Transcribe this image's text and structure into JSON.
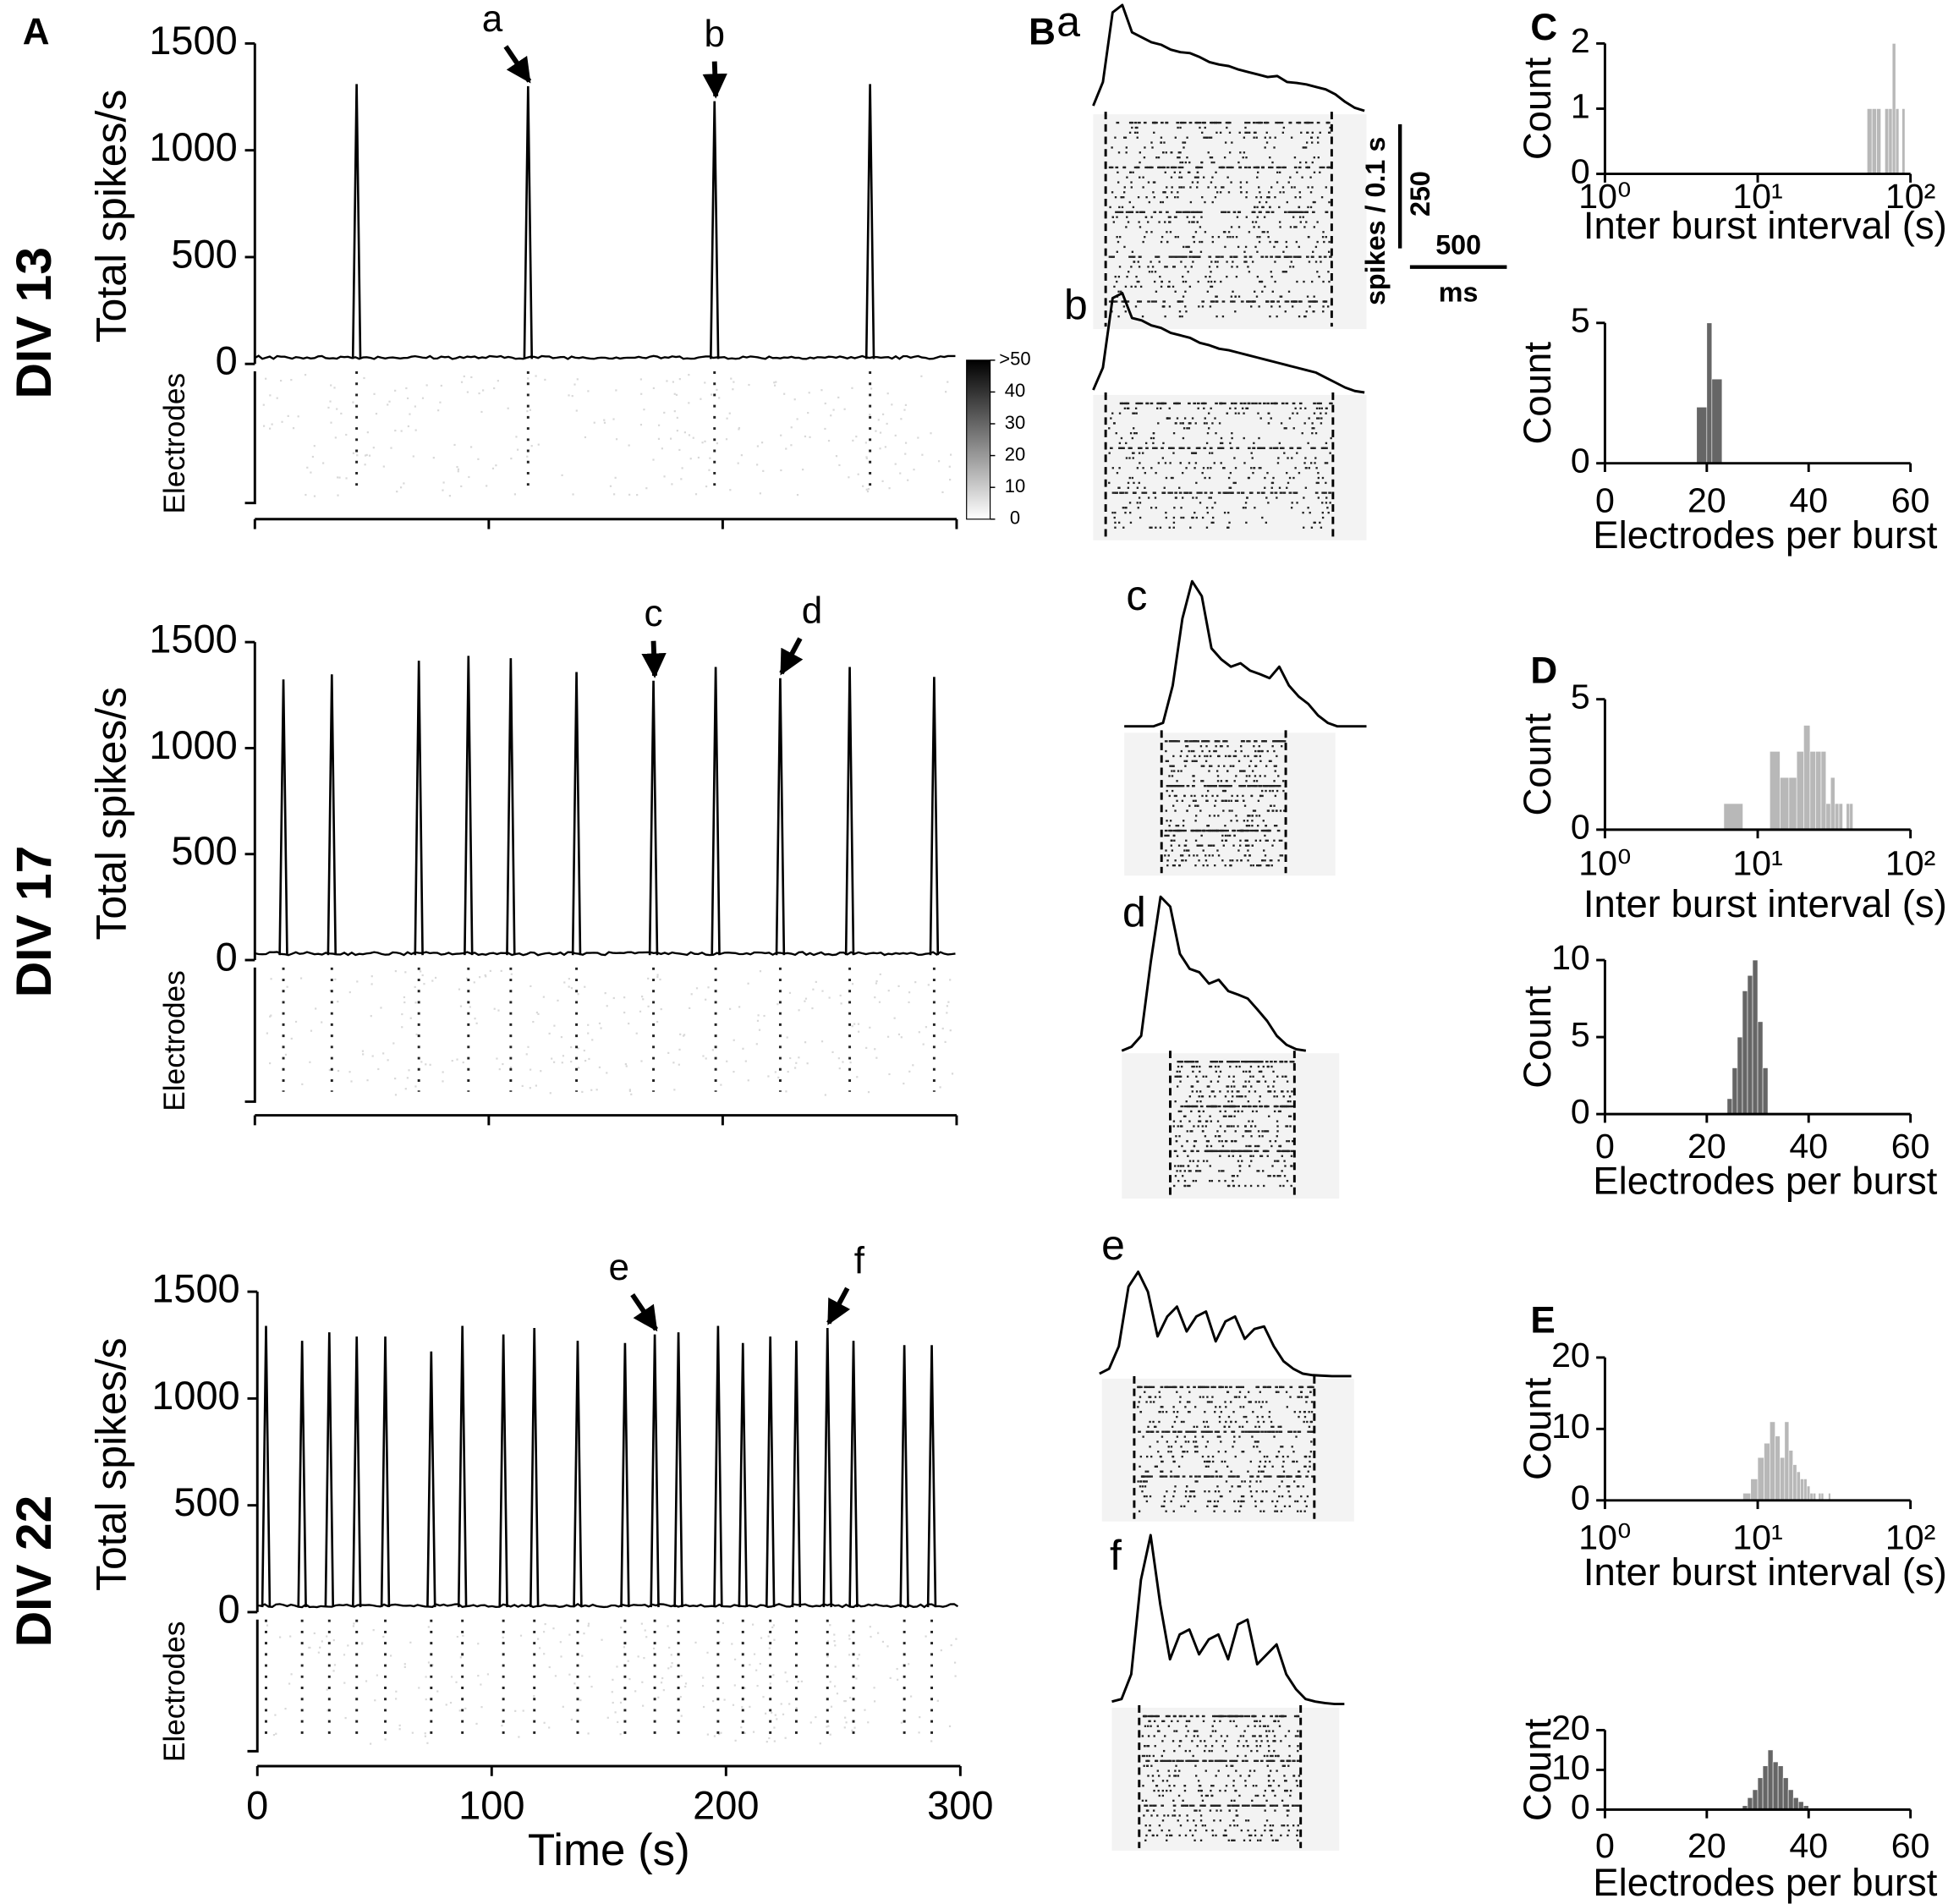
{
  "chart_data": [
    {
      "type": "spikes",
      "panel": "A",
      "row_label": "DIV 13",
      "ylabel": "Total spikes/s",
      "raster_label": "Electrodes",
      "xlim": [
        0,
        300
      ],
      "xticks": [
        0,
        100,
        200,
        300
      ],
      "ylim": [
        0,
        1500
      ],
      "yticks": [
        0,
        500,
        1000,
        1500
      ],
      "x": [
        43.5,
        116.8,
        196.5,
        263
      ],
      "values": [
        1310,
        1300,
        1230,
        1310
      ],
      "annotations": [
        {
          "text": "a",
          "x": 116.8,
          "y": 1300
        },
        {
          "text": "b",
          "x": 196.5,
          "y": 1230
        }
      ],
      "colorbar": {
        "lim": [
          0,
          50
        ],
        "ticks": [
          0,
          10,
          20,
          30,
          40,
          {
            "value": 50,
            "label": ">50"
          }
        ]
      }
    },
    {
      "type": "spikes",
      "row_label": "DIV 17",
      "ylabel": "Total spikes/s",
      "raster_label": "Electrodes",
      "xlim": [
        0,
        300
      ],
      "xticks": [
        0,
        100,
        200,
        300
      ],
      "ylim": [
        0,
        1500
      ],
      "yticks": [
        0,
        500,
        1000,
        1500
      ],
      "x": [
        12.2,
        32.9,
        70.1,
        91.3,
        109.4,
        137.5,
        170.4,
        197,
        224.6,
        254.3,
        290.4
      ],
      "values": [
        1324,
        1348,
        1412,
        1435,
        1424,
        1359,
        1318,
        1383,
        1330,
        1383,
        1336
      ],
      "annotations": [
        {
          "text": "c",
          "x": 170.4,
          "y": 1318
        },
        {
          "text": "d",
          "x": 224.6,
          "y": 1330
        }
      ]
    },
    {
      "type": "spikes",
      "row_label": "DIV 22",
      "ylabel": "Total spikes/s",
      "raster_label": "Electrodes",
      "xlabel": "Time (s)",
      "xlim": [
        0,
        300
      ],
      "xticks": [
        0,
        100,
        200,
        300
      ],
      "ylim": [
        0,
        1500
      ],
      "yticks": [
        0,
        500,
        1000,
        1500
      ],
      "x": [
        3.7,
        19.1,
        30.7,
        42.4,
        54.6,
        74.2,
        87.5,
        105,
        118.2,
        136.7,
        156.9,
        169.6,
        179.7,
        196.6,
        207.2,
        218.9,
        230,
        243.3,
        254.4,
        276.1,
        287.8
      ],
      "values": [
        1340,
        1270,
        1310,
        1290,
        1290,
        1220,
        1340,
        1300,
        1330,
        1270,
        1260,
        1300,
        1310,
        1340,
        1260,
        1290,
        1270,
        1330,
        1270,
        1250,
        1250
      ],
      "annotations": [
        {
          "text": "e",
          "x": 169.6,
          "y": 1300
        },
        {
          "text": "f",
          "x": 243.3,
          "y": 1330
        }
      ]
    },
    {
      "type": "profile",
      "panel": "B",
      "label": "a",
      "x": [
        0,
        50,
        100,
        150,
        200,
        250,
        300,
        350,
        400,
        450,
        500,
        550,
        600,
        650,
        700,
        750,
        800,
        850,
        900,
        950,
        1000,
        1050,
        1100,
        1150,
        1200,
        1250,
        1300,
        1350,
        1400
      ],
      "values": [
        12,
        60,
        200,
        215,
        160,
        150,
        140,
        135,
        125,
        120,
        118,
        110,
        100,
        95,
        92,
        85,
        80,
        75,
        70,
        72,
        60,
        58,
        55,
        50,
        45,
        35,
        20,
        8,
        2
      ]
    },
    {
      "type": "profile",
      "label": "b",
      "x": [
        0,
        50,
        100,
        150,
        200,
        250,
        300,
        350,
        400,
        450,
        500,
        550,
        600,
        650,
        700,
        750,
        800,
        850,
        900,
        950,
        1000,
        1050,
        1100,
        1150,
        1200,
        1250,
        1300,
        1350,
        1400
      ],
      "values": [
        5,
        50,
        190,
        200,
        150,
        145,
        135,
        130,
        120,
        115,
        110,
        100,
        95,
        88,
        85,
        80,
        75,
        70,
        65,
        60,
        55,
        50,
        45,
        40,
        30,
        20,
        10,
        3,
        0
      ]
    },
    {
      "type": "profile",
      "label": "c",
      "x": [
        0,
        50,
        100,
        150,
        200,
        250,
        300,
        350,
        400,
        450,
        500,
        550,
        600,
        650,
        700,
        750,
        800,
        850,
        900,
        950,
        1000,
        1050,
        1100,
        1150,
        1200,
        1250
      ],
      "values": [
        8,
        8,
        8,
        8,
        15,
        90,
        225,
        300,
        270,
        165,
        143,
        128,
        135,
        120,
        113,
        105,
        128,
        90,
        68,
        53,
        30,
        15,
        8,
        8,
        8,
        8
      ]
    },
    {
      "type": "profile",
      "label": "d",
      "x": [
        0,
        50,
        100,
        150,
        200,
        250,
        300,
        350,
        400,
        450,
        500,
        550,
        600,
        650,
        700,
        750,
        800,
        850,
        900,
        950
      ],
      "values": [
        0,
        8,
        30,
        180,
        310,
        290,
        195,
        165,
        158,
        135,
        143,
        120,
        113,
        105,
        83,
        60,
        30,
        12,
        3,
        0
      ]
    },
    {
      "type": "profile",
      "label": "e",
      "x": [
        0,
        50,
        100,
        150,
        200,
        250,
        300,
        350,
        400,
        450,
        500,
        550,
        600,
        650,
        700,
        750,
        800,
        850,
        900,
        950,
        1000,
        1050,
        1100,
        1150,
        1200,
        1250,
        1300
      ],
      "values": [
        5,
        15,
        60,
        180,
        210,
        170,
        80,
        120,
        140,
        90,
        120,
        130,
        70,
        110,
        120,
        75,
        95,
        100,
        60,
        30,
        15,
        5,
        2,
        1,
        0,
        0,
        0
      ]
    },
    {
      "type": "profile",
      "label": "f",
      "x": [
        0,
        50,
        100,
        150,
        200,
        250,
        300,
        350,
        400,
        450,
        500,
        550,
        600,
        650,
        700,
        750,
        800,
        850,
        900,
        950,
        1000,
        1050,
        1100,
        1150,
        1200
      ],
      "values": [
        5,
        10,
        60,
        250,
        340,
        200,
        90,
        140,
        150,
        100,
        130,
        140,
        90,
        160,
        170,
        80,
        100,
        120,
        60,
        30,
        10,
        5,
        2,
        0,
        0
      ]
    },
    {
      "type": "scalebar",
      "y_value": 250,
      "y_label": "spikes / 0.1 s",
      "x_value": 500,
      "x_label": "ms"
    },
    {
      "type": "histogram",
      "panel": "C",
      "ylabel": "Count",
      "xlabel": "Inter burst interval (s)",
      "xscale": "log",
      "xlim": [
        1,
        100
      ],
      "xticks": [
        {
          "value": 1,
          "label": "10⁰"
        },
        {
          "value": 10,
          "label": "10¹"
        },
        {
          "value": 100,
          "label": "10²"
        }
      ],
      "ylim": [
        0,
        2
      ],
      "yticks": [
        0,
        1,
        2
      ],
      "color": "#b8b8b8",
      "bins": [
        52,
        56,
        60,
        64,
        68,
        72,
        76,
        80,
        84,
        88,
        92
      ],
      "values": [
        1,
        1,
        1,
        0,
        1,
        1,
        2,
        1,
        0,
        1
      ]
    },
    {
      "type": "histogram",
      "ylabel": "Count",
      "xlabel": "Electrodes per burst",
      "xlim": [
        0,
        60
      ],
      "xticks": [
        0,
        20,
        40,
        60
      ],
      "ylim": [
        0,
        5
      ],
      "yticks": [
        0,
        5
      ],
      "color": "#666666",
      "bins": [
        18,
        20,
        21,
        23
      ],
      "values": [
        2,
        5,
        3
      ]
    },
    {
      "type": "histogram",
      "panel": "D",
      "ylabel": "Count",
      "xlabel": "Inter burst interval (s)",
      "xscale": "log",
      "xlim": [
        1,
        100
      ],
      "xticks": [
        {
          "value": 1,
          "label": "10⁰"
        },
        {
          "value": 10,
          "label": "10¹"
        },
        {
          "value": 100,
          "label": "10²"
        }
      ],
      "ylim": [
        0,
        5
      ],
      "yticks": [
        0,
        5
      ],
      "color": "#b8b8b8",
      "bins": [
        6,
        8,
        10,
        12,
        14,
        16,
        18,
        20,
        22,
        24,
        26,
        28,
        30,
        32,
        34,
        36,
        38,
        40,
        42
      ],
      "values": [
        1,
        0,
        0,
        3,
        2,
        2,
        3,
        4,
        3,
        3,
        3,
        1,
        2,
        1,
        1,
        0,
        1,
        1
      ]
    },
    {
      "type": "histogram",
      "ylabel": "Count",
      "xlabel": "Electrodes per burst",
      "xlim": [
        0,
        60
      ],
      "xticks": [
        0,
        20,
        40,
        60
      ],
      "ylim": [
        0,
        10
      ],
      "yticks": [
        0,
        5,
        10
      ],
      "color": "#666666",
      "bins": [
        24,
        25,
        26,
        27,
        28,
        29,
        30,
        31,
        32
      ],
      "values": [
        1,
        3,
        5,
        8,
        9,
        10,
        6,
        3
      ]
    },
    {
      "type": "histogram",
      "panel": "E",
      "ylabel": "Count",
      "xlabel": "Inter burst interval (s)",
      "xscale": "log",
      "xlim": [
        1,
        100
      ],
      "xticks": [
        {
          "value": 1,
          "label": "10⁰"
        },
        {
          "value": 10,
          "label": "10¹"
        },
        {
          "value": 100,
          "label": "10²"
        }
      ],
      "ylim": [
        0,
        20
      ],
      "yticks": [
        0,
        10,
        20
      ],
      "color": "#b8b8b8",
      "bins": [
        8,
        9,
        10,
        11,
        12,
        13,
        14,
        15,
        16,
        17,
        18,
        19,
        20,
        21,
        22,
        23,
        24,
        25,
        26,
        27,
        28,
        29,
        30
      ],
      "values": [
        1,
        3,
        6,
        8,
        11,
        9,
        6,
        11,
        7,
        5,
        4,
        3,
        3,
        2,
        1,
        1,
        0,
        1,
        1,
        0,
        0,
        1
      ]
    },
    {
      "type": "histogram",
      "ylabel": "Count",
      "xlabel": "Electrodes per burst",
      "xlim": [
        0,
        60
      ],
      "xticks": [
        0,
        20,
        40,
        60
      ],
      "ylim": [
        0,
        20
      ],
      "yticks": [
        0,
        10,
        20
      ],
      "color": "#666666",
      "bins": [
        27,
        28,
        29,
        30,
        31,
        32,
        33,
        34,
        35,
        36,
        37,
        38,
        39,
        40
      ],
      "values": [
        1,
        3,
        5,
        8,
        11,
        15,
        12,
        11,
        8,
        5,
        3,
        2,
        1
      ]
    }
  ]
}
